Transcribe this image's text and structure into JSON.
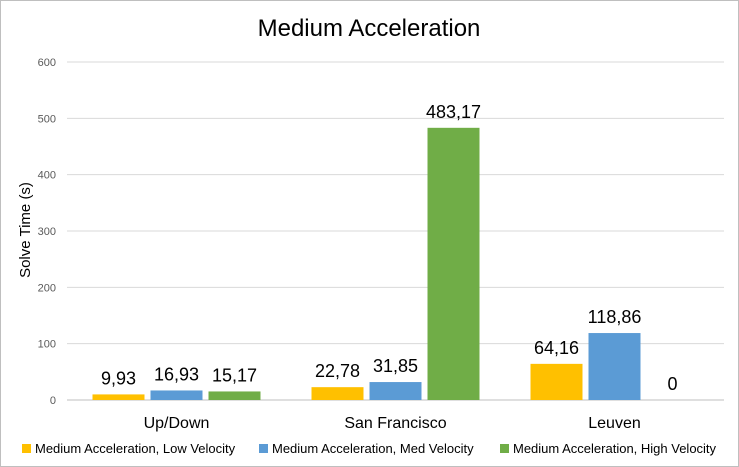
{
  "chart_data": {
    "type": "bar",
    "title": "Medium Acceleration",
    "xlabel": "",
    "ylabel": "Solve Time (s)",
    "ylim": [
      0,
      600
    ],
    "yticks": [
      0,
      100,
      200,
      300,
      400,
      500,
      600
    ],
    "grid": true,
    "legend_position": "bottom",
    "categories": [
      "Up/Down",
      "San Francisco",
      "Leuven"
    ],
    "series": [
      {
        "name": "Medium Acceleration, Low Velocity",
        "color": "#ffc000",
        "values": [
          9.93,
          22.78,
          64.16
        ],
        "labels": [
          "9,93",
          "22,78",
          "64,16"
        ]
      },
      {
        "name": "Medium Acceleration, Med Velocity",
        "color": "#5b9bd5",
        "values": [
          16.93,
          31.85,
          118.86
        ],
        "labels": [
          "16,93",
          "31,85",
          "118,86"
        ]
      },
      {
        "name": "Medium Acceleration, High Velocity",
        "color": "#70ad47",
        "values": [
          15.17,
          483.17,
          0
        ],
        "labels": [
          "15,17",
          "483,17",
          "0"
        ]
      }
    ]
  }
}
